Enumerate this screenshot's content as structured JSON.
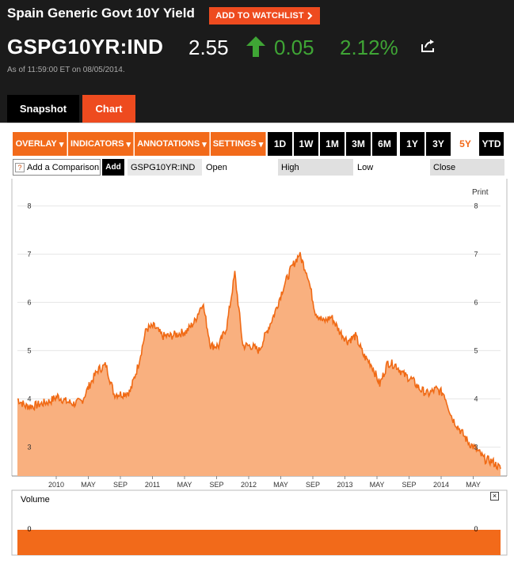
{
  "header": {
    "title": "Spain Generic Govt 10Y Yield",
    "watchlist_label": "ADD TO WATCHLIST",
    "ticker": "GSPG10YR:IND",
    "price": "2.55",
    "change": "0.05",
    "change_pct": "2.12%",
    "as_of": "As of 11:59:00 ET on 08/05/2014."
  },
  "tabs": {
    "snapshot": "Snapshot",
    "chart": "Chart"
  },
  "toolbar": {
    "overlay": "OVERLAY",
    "indicators": "INDICATORS",
    "annotations": "ANNOTATIONS",
    "settings": "SETTINGS",
    "ranges": [
      "1D",
      "1W",
      "1M",
      "3M",
      "6M",
      "1Y",
      "3Y",
      "5Y",
      "YTD"
    ],
    "active_range": "5Y"
  },
  "comparison": {
    "placeholder": "Add a Comparison",
    "q": "?",
    "add_label": "Add"
  },
  "legend": {
    "symbol": "GSPG10YR:IND",
    "open": "Open",
    "high": "High",
    "low": "Low",
    "close": "Close"
  },
  "print_label": "Print",
  "volume": {
    "label": "Volume",
    "close_glyph": "×",
    "zero": "0"
  },
  "colors": {
    "accent": "#f26a1a",
    "area_fill": "#f9b07f",
    "line": "#f06a15",
    "up": "#3fa535"
  },
  "chart_data": {
    "type": "area",
    "series_name": "GSPG10YR:IND",
    "ylim": [
      2.4,
      8.4
    ],
    "yticks": [
      "3",
      "4",
      "5",
      "6",
      "7",
      "8"
    ],
    "xtick_labels": [
      "2010",
      "MAY",
      "SEP",
      "2011",
      "MAY",
      "SEP",
      "2012",
      "MAY",
      "SEP",
      "2013",
      "MAY",
      "SEP",
      "2014",
      "MAY"
    ],
    "x": [
      "2009-08",
      "2009-09",
      "2009-10",
      "2009-11",
      "2009-12",
      "2010-01",
      "2010-02",
      "2010-03",
      "2010-04",
      "2010-05",
      "2010-06",
      "2010-07",
      "2010-08",
      "2010-09",
      "2010-10",
      "2010-11",
      "2010-12",
      "2011-01",
      "2011-02",
      "2011-03",
      "2011-04",
      "2011-05",
      "2011-06",
      "2011-07",
      "2011-08",
      "2011-09",
      "2011-10",
      "2011-11",
      "2011-12",
      "2012-01",
      "2012-02",
      "2012-03",
      "2012-04",
      "2012-05",
      "2012-06",
      "2012-07",
      "2012-08",
      "2012-09",
      "2012-10",
      "2012-11",
      "2012-12",
      "2013-01",
      "2013-02",
      "2013-03",
      "2013-04",
      "2013-05",
      "2013-06",
      "2013-07",
      "2013-08",
      "2013-09",
      "2013-10",
      "2013-11",
      "2013-12",
      "2014-01",
      "2014-02",
      "2014-03",
      "2014-04",
      "2014-05",
      "2014-06",
      "2014-07",
      "2014-08"
    ],
    "values": [
      4.0,
      3.85,
      3.85,
      3.9,
      3.95,
      4.05,
      3.95,
      3.9,
      3.95,
      4.3,
      4.6,
      4.7,
      4.1,
      4.1,
      4.15,
      4.7,
      5.45,
      5.5,
      5.3,
      5.3,
      5.35,
      5.4,
      5.6,
      6.0,
      5.1,
      5.1,
      5.5,
      6.6,
      5.1,
      5.1,
      5.0,
      5.4,
      5.8,
      6.3,
      6.7,
      7.0,
      6.6,
      5.8,
      5.6,
      5.7,
      5.4,
      5.2,
      5.3,
      4.9,
      4.7,
      4.3,
      4.75,
      4.7,
      4.5,
      4.4,
      4.2,
      4.1,
      4.2,
      4.1,
      3.6,
      3.35,
      3.1,
      2.95,
      2.75,
      2.7,
      2.55
    ],
    "volume_ylim": [
      0,
      1
    ],
    "volume_ytick": "0"
  }
}
